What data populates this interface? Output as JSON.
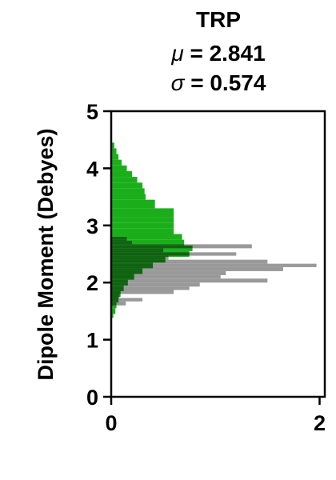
{
  "chart_data": {
    "type": "histogram",
    "orientation": "horizontal",
    "title": {
      "line1": "TRP",
      "mu_symbol": "μ",
      "mu_text": " = 2.841",
      "sigma_symbol": "σ",
      "sigma_text": " = 0.574"
    },
    "ylabel": "Dipole Moment (Debyes)",
    "xlabel": "",
    "xlim": [
      0,
      2.05
    ],
    "ylim": [
      0,
      5
    ],
    "x_ticks": [
      0,
      2
    ],
    "x_tick_labels": [
      "0",
      "2"
    ],
    "y_ticks": [
      0,
      1,
      2,
      3,
      4,
      5
    ],
    "y_tick_labels": [
      "0",
      "1",
      "2",
      "3",
      "4",
      "5"
    ],
    "grid": false,
    "colors": {
      "green": "#1aaf1a",
      "gray": "#999999",
      "overlap": "#0f640f"
    },
    "series": [
      {
        "color_key": "green",
        "bins": [
          {
            "y0": 1.38,
            "y1": 1.45,
            "x": 0.02
          },
          {
            "y0": 1.45,
            "y1": 1.55,
            "x": 0.04
          },
          {
            "y0": 1.55,
            "y1": 1.65,
            "x": 0.05
          },
          {
            "y0": 1.65,
            "y1": 1.75,
            "x": 0.07
          },
          {
            "y0": 1.75,
            "y1": 1.85,
            "x": 0.09
          },
          {
            "y0": 1.85,
            "y1": 1.95,
            "x": 0.12
          },
          {
            "y0": 1.95,
            "y1": 2.05,
            "x": 0.16
          },
          {
            "y0": 2.05,
            "y1": 2.15,
            "x": 0.22
          },
          {
            "y0": 2.15,
            "y1": 2.25,
            "x": 0.3
          },
          {
            "y0": 2.25,
            "y1": 2.35,
            "x": 0.4
          },
          {
            "y0": 2.35,
            "y1": 2.45,
            "x": 0.52
          },
          {
            "y0": 2.45,
            "y1": 2.55,
            "x": 0.75
          },
          {
            "y0": 2.55,
            "y1": 2.65,
            "x": 0.78
          },
          {
            "y0": 2.65,
            "y1": 2.75,
            "x": 0.7
          },
          {
            "y0": 2.75,
            "y1": 2.85,
            "x": 0.68
          },
          {
            "y0": 2.85,
            "y1": 2.95,
            "x": 0.6
          },
          {
            "y0": 2.95,
            "y1": 3.05,
            "x": 0.6
          },
          {
            "y0": 3.05,
            "y1": 3.15,
            "x": 0.6
          },
          {
            "y0": 3.15,
            "y1": 3.3,
            "x": 0.6
          },
          {
            "y0": 3.3,
            "y1": 3.45,
            "x": 0.42
          },
          {
            "y0": 3.45,
            "y1": 3.55,
            "x": 0.33
          },
          {
            "y0": 3.55,
            "y1": 3.65,
            "x": 0.32
          },
          {
            "y0": 3.65,
            "y1": 3.75,
            "x": 0.3
          },
          {
            "y0": 3.75,
            "y1": 3.85,
            "x": 0.25
          },
          {
            "y0": 3.85,
            "y1": 3.95,
            "x": 0.2
          },
          {
            "y0": 3.95,
            "y1": 4.05,
            "x": 0.15
          },
          {
            "y0": 4.05,
            "y1": 4.15,
            "x": 0.1
          },
          {
            "y0": 4.15,
            "y1": 4.25,
            "x": 0.07
          },
          {
            "y0": 4.25,
            "y1": 4.35,
            "x": 0.05
          },
          {
            "y0": 4.35,
            "y1": 4.45,
            "x": 0.03
          }
        ]
      },
      {
        "color_key": "gray",
        "bins": [
          {
            "y0": 1.6,
            "y1": 1.67,
            "x": 0.14
          },
          {
            "y0": 1.67,
            "y1": 1.73,
            "x": 0.3
          },
          {
            "y0": 1.73,
            "y1": 1.8,
            "x": 0.08
          },
          {
            "y0": 1.8,
            "y1": 1.87,
            "x": 0.6
          },
          {
            "y0": 1.87,
            "y1": 1.93,
            "x": 0.75
          },
          {
            "y0": 1.93,
            "y1": 2.0,
            "x": 0.85
          },
          {
            "y0": 2.0,
            "y1": 2.07,
            "x": 1.5
          },
          {
            "y0": 2.07,
            "y1": 2.13,
            "x": 1.05
          },
          {
            "y0": 2.13,
            "y1": 2.2,
            "x": 1.1
          },
          {
            "y0": 2.2,
            "y1": 2.27,
            "x": 1.65
          },
          {
            "y0": 2.27,
            "y1": 2.33,
            "x": 1.97
          },
          {
            "y0": 2.33,
            "y1": 2.4,
            "x": 1.5
          },
          {
            "y0": 2.4,
            "y1": 2.47,
            "x": 0.55
          },
          {
            "y0": 2.47,
            "y1": 2.53,
            "x": 1.2
          },
          {
            "y0": 2.53,
            "y1": 2.6,
            "x": 0.5
          },
          {
            "y0": 2.6,
            "y1": 2.67,
            "x": 1.35
          },
          {
            "y0": 2.67,
            "y1": 2.73,
            "x": 0.2
          },
          {
            "y0": 2.73,
            "y1": 2.8,
            "x": 0.15
          }
        ]
      }
    ]
  }
}
